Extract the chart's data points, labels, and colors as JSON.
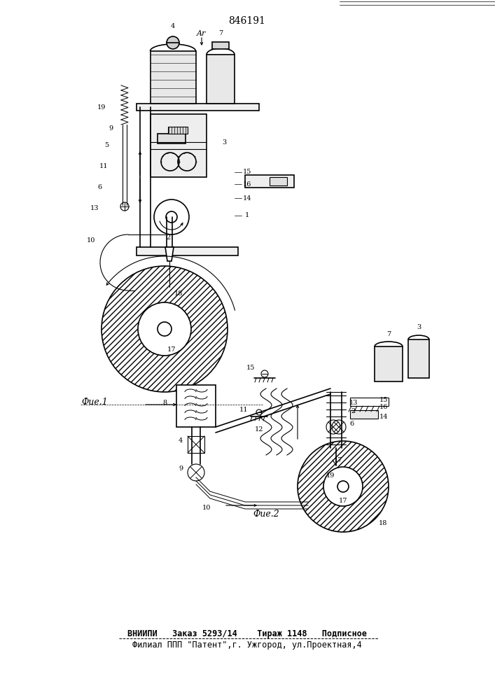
{
  "title": "846191",
  "fig1_label": "Фие.1",
  "fig2_label": "Фие.2",
  "footer_line1": "ВНИИПИ   Заказ 5293/14    Тираж 1148   Подписное",
  "footer_line2": "Филиал ППП \"Патент\",г. Ужгород, ул.Проектная,4",
  "bg_color": "#ffffff",
  "line_color": "#000000"
}
